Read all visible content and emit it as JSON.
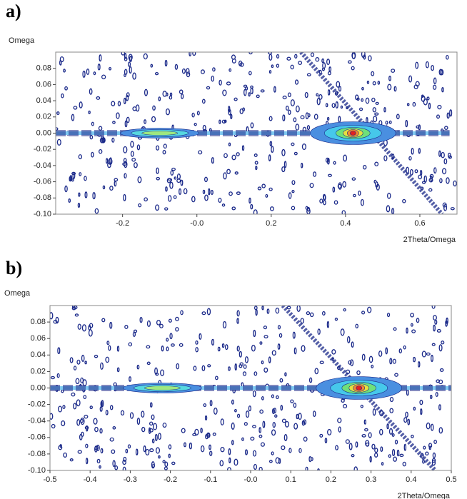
{
  "chart_data": [
    {
      "type": "contour",
      "panel_label": "a)",
      "ylabel": "Omega",
      "xlabel": "2Theta/Omega",
      "xlim": [
        -0.38,
        0.7
      ],
      "xticks": [
        -0.2,
        {
          "value": 0,
          "label": "-0.0"
        },
        0.2,
        0.4,
        0.6
      ],
      "ylim": [
        -0.1,
        0.1
      ],
      "yticks": [
        0.08,
        0.06,
        0.04,
        0.02,
        {
          "value": 0,
          "label": "0.00"
        },
        -0.02,
        -0.04,
        -0.06,
        -0.08,
        {
          "value": -0.1,
          "label": "-0.10"
        }
      ],
      "peaks": {
        "x": [
          0.42,
          -0.1
        ],
        "y": [
          0,
          0
        ]
      },
      "streaks": [
        {
          "x": [
            -0.38,
            0.68
          ],
          "y": [
            0,
            0
          ]
        },
        {
          "x": [
            0.28,
            0.66
          ],
          "y": [
            0.1,
            -0.1
          ]
        }
      ]
    },
    {
      "type": "contour",
      "panel_label": "b)",
      "ylabel": "Omega",
      "xlabel": "2Theta/Omega",
      "xlim": [
        -0.5,
        0.5
      ],
      "xticks": [
        -0.5,
        -0.4,
        -0.3,
        -0.2,
        -0.1,
        {
          "value": 0,
          "label": "-0.0"
        },
        0.1,
        0.2,
        0.3,
        0.4,
        0.5
      ],
      "ylim": [
        -0.1,
        0.1
      ],
      "yticks": [
        0.08,
        0.06,
        0.04,
        0.02,
        {
          "value": 0,
          "label": "0.00"
        },
        -0.02,
        -0.04,
        -0.06,
        -0.08,
        {
          "value": -0.1,
          "label": "-0.10"
        }
      ],
      "peaks": {
        "x": [
          0.27,
          -0.22
        ],
        "y": [
          0,
          0
        ]
      },
      "streaks": [
        {
          "x": [
            -0.5,
            0.5
          ],
          "y": [
            0,
            0
          ]
        },
        {
          "x": [
            0.08,
            0.46
          ],
          "y": [
            0.1,
            -0.1
          ]
        }
      ]
    }
  ]
}
